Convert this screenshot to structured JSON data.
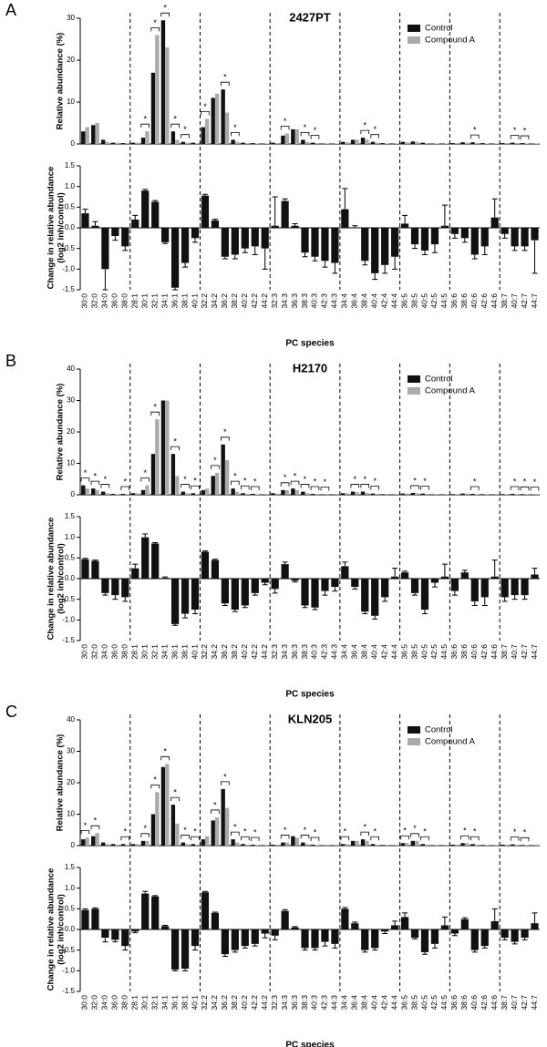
{
  "chart_data": [
    {
      "type": "grouped-bar",
      "panel_label": "A",
      "title": "2427PT",
      "ylabel": "Relative abundance (%)",
      "ylim": [
        0,
        30
      ],
      "yticks": [
        0,
        10,
        20,
        30
      ],
      "series": [
        {
          "name": "Control",
          "color": "#111111",
          "values": [
            3,
            4.5,
            1,
            0.3,
            0.2,
            0.3,
            1.5,
            17,
            29.5,
            3,
            0.5,
            0.3,
            4,
            11,
            13,
            1,
            0.3,
            0.2,
            0.1,
            0.3,
            2,
            3.5,
            1,
            0.3,
            0.1,
            0.1,
            0.5,
            1,
            1.5,
            0.5,
            0.2,
            0.1,
            0.5,
            0.6,
            0.3,
            0.1,
            0.1,
            0.2,
            0.4,
            0.4,
            0.2,
            0.1,
            0.2,
            0.3,
            0.2,
            0.1
          ]
        },
        {
          "name": "Compound A",
          "color": "#aaaaaa",
          "values": [
            4,
            5,
            0.5,
            0.3,
            0.2,
            0.3,
            3,
            26,
            23,
            1,
            0.3,
            0.2,
            6,
            12,
            7.5,
            0.5,
            0.2,
            0.1,
            0.1,
            0.2,
            2.5,
            3.5,
            0.5,
            0.2,
            0.1,
            0.1,
            0.4,
            1,
            1,
            0.3,
            0.1,
            0.1,
            0.4,
            0.5,
            0.2,
            0.1,
            0.1,
            0.2,
            0.3,
            0.2,
            0.1,
            0.1,
            0.2,
            0.2,
            0.1,
            0.1
          ]
        }
      ],
      "significance": [
        null,
        null,
        null,
        null,
        null,
        null,
        "*",
        "*",
        "*",
        "*",
        "*",
        null,
        "*",
        null,
        "*",
        "*",
        null,
        null,
        null,
        null,
        "*",
        null,
        "*",
        "*",
        null,
        null,
        null,
        null,
        "*",
        "*",
        null,
        null,
        null,
        null,
        null,
        null,
        null,
        null,
        null,
        "*",
        null,
        null,
        null,
        "*",
        "*",
        null
      ]
    },
    {
      "type": "error-bar",
      "ylabel": [
        "Change in relative abundance",
        "(log2 inh/control)"
      ],
      "xlabel": "PC species",
      "color": "#111111",
      "categories": [
        "30:0",
        "32:0",
        "34:0",
        "36:0",
        "38:0",
        "28:1",
        "30:1",
        "32:1",
        "34:1",
        "36:1",
        "38:1",
        "40:1",
        "32:2",
        "34:2",
        "36:2",
        "38:2",
        "40:2",
        "42:2",
        "44:2",
        "32:3",
        "34:3",
        "36:3",
        "38:3",
        "40:3",
        "42:3",
        "44:3",
        "34:4",
        "36:4",
        "38:4",
        "40:4",
        "42:4",
        "44:4",
        "36:5",
        "38:5",
        "40:5",
        "42:5",
        "44:5",
        "36:6",
        "38:6",
        "40:6",
        "42:6",
        "44:6",
        "38:7",
        "40:7",
        "42:7",
        "44:7"
      ],
      "ylim": [
        -1.5,
        1.5
      ],
      "yticks": [
        -1.5,
        {
          "value": -1,
          "label": "-1.0"
        },
        -0.5,
        {
          "value": 0,
          "label": "0.0"
        },
        0.5,
        {
          "value": 1,
          "label": "1.0"
        },
        1.5
      ],
      "values": [
        0.35,
        0.05,
        -1,
        -0.2,
        -0.45,
        0.2,
        0.9,
        0.63,
        -0.35,
        -1.45,
        -0.85,
        -0.25,
        0.78,
        0.18,
        -0.7,
        -0.65,
        -0.5,
        -0.45,
        -0.5,
        0.05,
        0.65,
        0.05,
        -0.6,
        -0.7,
        -0.8,
        -0.85,
        0.45,
        0,
        -0.8,
        -1.1,
        -0.9,
        -0.7,
        0.1,
        -0.4,
        -0.55,
        -0.4,
        0.05,
        -0.15,
        -0.25,
        -0.65,
        -0.45,
        0.25,
        -0.15,
        -0.45,
        -0.45,
        -0.3
      ],
      "errors": [
        0.1,
        0.1,
        0.5,
        0.1,
        0.1,
        0.1,
        0.03,
        0.03,
        0.03,
        0.05,
        0.1,
        0.1,
        0.03,
        0.03,
        0.05,
        0.1,
        0.1,
        0.2,
        0.5,
        0.7,
        0.05,
        0.05,
        0.1,
        0.1,
        0.15,
        0.25,
        0.5,
        0.05,
        0.1,
        0.15,
        0.2,
        0.3,
        0.2,
        0.1,
        0.1,
        0.2,
        0.5,
        0.1,
        0.1,
        0.1,
        0.2,
        0.45,
        0.1,
        0.1,
        0.1,
        0.8
      ]
    },
    {
      "type": "grouped-bar",
      "panel_label": "B",
      "title": "H2170",
      "ylabel": "Relative abundance (%)",
      "ylim": [
        0,
        40
      ],
      "yticks": [
        0,
        10,
        20,
        30,
        40
      ],
      "series": [
        {
          "name": "Control",
          "color": "#111111",
          "values": [
            3,
            2,
            1,
            0.3,
            0.3,
            0.5,
            1.5,
            13,
            30,
            13,
            1,
            0.5,
            1.5,
            6,
            16,
            2,
            0.5,
            0.3,
            0.1,
            0.5,
            1.5,
            2,
            1,
            0.3,
            0.1,
            0.1,
            0.5,
            1,
            1,
            0.4,
            0.2,
            0.1,
            0.4,
            0.6,
            0.4,
            0.1,
            0.1,
            0.2,
            0.4,
            0.3,
            0.2,
            0.1,
            0.2,
            0.3,
            0.2,
            0.1
          ]
        },
        {
          "name": "Compound A",
          "color": "#aaaaaa",
          "values": [
            2,
            1.5,
            0.5,
            0.2,
            0.2,
            0.5,
            3,
            24,
            30,
            6,
            0.5,
            0.3,
            2,
            7,
            11,
            1,
            0.3,
            0.2,
            0.1,
            0.4,
            1.5,
            1.5,
            0.5,
            0.2,
            0.1,
            0.1,
            0.5,
            0.8,
            0.6,
            0.3,
            0.1,
            0.1,
            0.4,
            0.5,
            0.3,
            0.1,
            0.1,
            0.2,
            0.4,
            0.2,
            0.2,
            0.1,
            0.2,
            0.2,
            0.2,
            0.1
          ]
        }
      ],
      "significance": [
        "*",
        "*",
        "*",
        null,
        "*",
        null,
        "*",
        "*",
        null,
        "*",
        "*",
        "*",
        null,
        "*",
        "*",
        "*",
        "*",
        "*",
        null,
        null,
        "*",
        "*",
        "*",
        "*",
        "*",
        null,
        null,
        "*",
        "*",
        "*",
        null,
        null,
        null,
        "*",
        "*",
        null,
        null,
        null,
        null,
        "*",
        null,
        null,
        null,
        "*",
        "*",
        "*"
      ]
    },
    {
      "type": "error-bar",
      "ylabel": [
        "Change in relative abundance",
        "(log2 inh/control)"
      ],
      "xlabel": "PC species",
      "color": "#111111",
      "categories": [
        "30:0",
        "32:0",
        "34:0",
        "36:0",
        "38:0",
        "28:1",
        "30:1",
        "32:1",
        "34:1",
        "36:1",
        "38:1",
        "40:1",
        "32:2",
        "34:2",
        "36:2",
        "38:2",
        "40:2",
        "42:2",
        "44:2",
        "32:3",
        "34:3",
        "36:3",
        "38:3",
        "40:3",
        "42:3",
        "44:3",
        "34:4",
        "36:4",
        "38:4",
        "40:4",
        "42:4",
        "44:4",
        "36:5",
        "38:5",
        "40:5",
        "42:5",
        "44:5",
        "36:6",
        "38:6",
        "40:6",
        "42:6",
        "44:6",
        "38:7",
        "40:7",
        "42:7",
        "44:7"
      ],
      "ylim": [
        -1.5,
        1.5
      ],
      "yticks": [
        -1.5,
        {
          "value": -1,
          "label": "-1.0"
        },
        -0.5,
        {
          "value": 0,
          "label": "0.0"
        },
        0.5,
        {
          "value": 1,
          "label": "1.0"
        },
        1.5
      ],
      "values": [
        0.47,
        0.43,
        -0.35,
        -0.4,
        -0.45,
        0.25,
        1,
        0.85,
        0.02,
        -1.1,
        -0.85,
        -0.75,
        0.65,
        0.45,
        -0.6,
        -0.75,
        -0.65,
        -0.35,
        -0.1,
        -0.25,
        0.35,
        -0.05,
        -0.65,
        -0.7,
        -0.3,
        -0.2,
        0.3,
        -0.2,
        -0.8,
        -0.9,
        -0.45,
        0.05,
        0.15,
        -0.35,
        -0.75,
        -0.1,
        0.05,
        -0.3,
        0.15,
        -0.55,
        -0.45,
        0.05,
        -0.45,
        -0.4,
        -0.4,
        0.1
      ],
      "errors": [
        0.02,
        0.02,
        0.05,
        0.1,
        0.1,
        0.1,
        0.08,
        0.02,
        0.02,
        0.03,
        0.1,
        0.1,
        0.02,
        0.02,
        0.05,
        0.05,
        0.05,
        0.05,
        0.05,
        0.1,
        0.05,
        0.03,
        0.05,
        0.05,
        0.1,
        0.1,
        0.1,
        0.05,
        0.05,
        0.08,
        0.1,
        0.2,
        0.03,
        0.05,
        0.1,
        0.1,
        0.3,
        0.1,
        0.05,
        0.1,
        0.2,
        0.4,
        0.1,
        0.1,
        0.1,
        0.15
      ]
    },
    {
      "type": "grouped-bar",
      "panel_label": "C",
      "title": "KLN205",
      "ylabel": "Relative abundance (%)",
      "ylim": [
        0,
        40
      ],
      "yticks": [
        0,
        10,
        20,
        30,
        40
      ],
      "series": [
        {
          "name": "Control",
          "color": "#111111",
          "values": [
            2,
            3,
            1,
            0.5,
            0.5,
            0.5,
            1.5,
            10,
            25,
            13,
            1,
            0.5,
            2,
            8,
            18,
            2,
            0.5,
            0.3,
            0.1,
            0.3,
            1,
            3,
            1,
            0.3,
            0.1,
            0.1,
            0.5,
            1.5,
            2,
            0.5,
            0.2,
            0.1,
            0.8,
            1.5,
            0.5,
            0.1,
            0.1,
            0.3,
            0.8,
            0.5,
            0.2,
            0.1,
            0.3,
            0.4,
            0.2,
            0.1
          ]
        },
        {
          "name": "Compound A",
          "color": "#aaaaaa",
          "values": [
            2.5,
            4,
            0.5,
            0.3,
            0.3,
            0.5,
            1.5,
            17,
            26,
            7,
            0.5,
            0.3,
            3,
            9,
            12,
            1,
            0.3,
            0.2,
            0.1,
            0.3,
            1,
            2.5,
            0.5,
            0.2,
            0.1,
            0.1,
            0.5,
            1.5,
            1.5,
            0.3,
            0.1,
            0.1,
            0.8,
            1.5,
            0.3,
            0.1,
            0.1,
            0.3,
            0.8,
            0.3,
            0.1,
            0.1,
            0.3,
            0.3,
            0.2,
            0.1
          ]
        }
      ],
      "significance": [
        "*",
        "*",
        null,
        null,
        "*",
        null,
        "*",
        "*",
        "*",
        "*",
        "*",
        "*",
        null,
        "*",
        "*",
        "*",
        "*",
        "*",
        null,
        null,
        "*",
        null,
        "*",
        "*",
        null,
        null,
        "*",
        null,
        "*",
        "*",
        null,
        null,
        "*",
        "*",
        "*",
        null,
        null,
        null,
        "*",
        "*",
        null,
        null,
        null,
        "*",
        "*",
        null
      ]
    },
    {
      "type": "error-bar",
      "ylabel": [
        "Change in relative abundance",
        "(log2 inh/control)"
      ],
      "xlabel": "PC species",
      "color": "#111111",
      "categories": [
        "30:0",
        "32:0",
        "34:0",
        "36:0",
        "38:0",
        "28:1",
        "30:1",
        "32:1",
        "34:1",
        "36:1",
        "38:1",
        "40:1",
        "32:2",
        "34:2",
        "36:2",
        "38:2",
        "40:2",
        "42:2",
        "44:2",
        "32:3",
        "34:3",
        "36:3",
        "38:3",
        "40:3",
        "42:3",
        "44:3",
        "34:4",
        "36:4",
        "38:4",
        "40:4",
        "42:4",
        "44:4",
        "36:5",
        "38:5",
        "40:5",
        "42:5",
        "44:5",
        "36:6",
        "38:6",
        "40:6",
        "42:6",
        "44:6",
        "38:7",
        "40:7",
        "42:7",
        "44:7"
      ],
      "ylim": [
        -1.5,
        1.5
      ],
      "yticks": [
        -1.5,
        {
          "value": -1,
          "label": "-1.0"
        },
        -0.5,
        {
          "value": 0,
          "label": "0.0"
        },
        0.5,
        {
          "value": 1,
          "label": "1.0"
        },
        1.5
      ],
      "values": [
        0.47,
        0.5,
        -0.2,
        -0.25,
        -0.4,
        -0.05,
        0.87,
        0.8,
        0.08,
        -0.97,
        -0.95,
        -0.4,
        0.9,
        0.4,
        -0.6,
        -0.5,
        -0.4,
        -0.35,
        -0.1,
        -0.15,
        0.45,
        0.05,
        -0.45,
        -0.45,
        -0.3,
        -0.35,
        0.5,
        0.15,
        -0.5,
        -0.45,
        -0.05,
        0.1,
        0.3,
        -0.2,
        -0.55,
        -0.35,
        0.1,
        -0.1,
        0.25,
        -0.5,
        -0.4,
        0.2,
        -0.2,
        -0.3,
        -0.2,
        0.15
      ],
      "errors": [
        0.03,
        0.02,
        0.1,
        0.05,
        0.1,
        0.03,
        0.05,
        0.02,
        0.02,
        0.03,
        0.05,
        0.1,
        0.02,
        0.02,
        0.05,
        0.05,
        0.05,
        0.05,
        0.1,
        0.1,
        0.03,
        0.02,
        0.05,
        0.05,
        0.1,
        0.1,
        0.03,
        0.03,
        0.05,
        0.05,
        0.05,
        0.1,
        0.1,
        0.03,
        0.05,
        0.1,
        0.2,
        0.05,
        0.03,
        0.05,
        0.05,
        0.3,
        0.05,
        0.05,
        0.05,
        0.25
      ]
    }
  ]
}
